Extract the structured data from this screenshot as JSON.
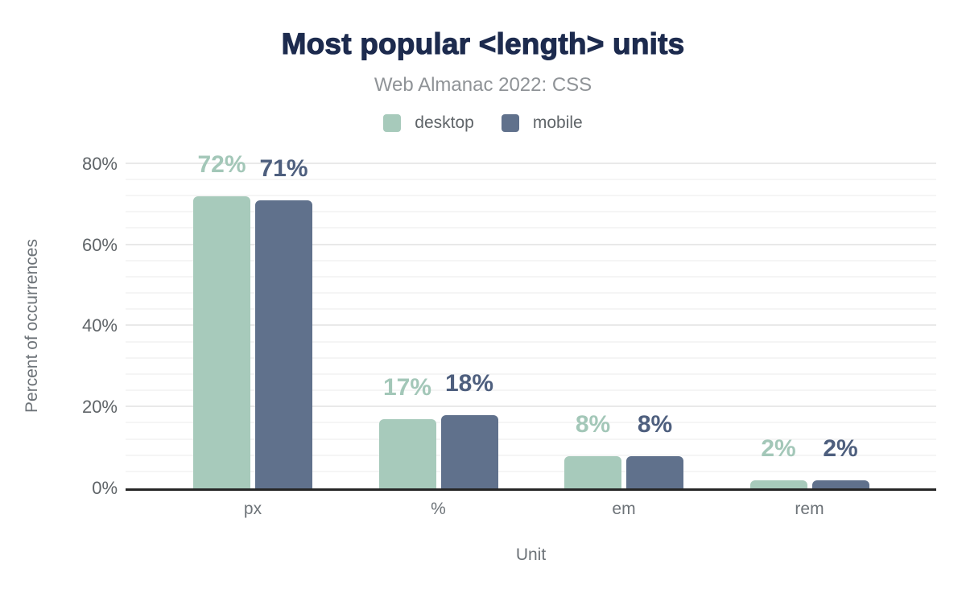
{
  "header": {
    "title": "Most popular <length> units",
    "subtitle": "Web Almanac 2022: CSS"
  },
  "chart_data": {
    "type": "bar",
    "title": "Most popular <length> units",
    "subtitle": "Web Almanac 2022: CSS",
    "categories": [
      "px",
      "%",
      "em",
      "rem"
    ],
    "series": [
      {
        "name": "desktop",
        "color": "#a7cabb",
        "label_color": "#a3c7b8",
        "values": [
          72,
          17,
          8,
          2
        ]
      },
      {
        "name": "mobile",
        "color": "#60718c",
        "label_color": "#4e5f7e",
        "values": [
          71,
          18,
          8,
          2
        ]
      }
    ],
    "value_labels": {
      "desktop": [
        "72%",
        "17%",
        "8%",
        "2%"
      ],
      "mobile": [
        "71%",
        "18%",
        "8%",
        "2%"
      ]
    },
    "xlabel": "Unit",
    "ylabel": "Percent of occurrences",
    "ylim": [
      0,
      80
    ],
    "yticks": [
      0,
      20,
      40,
      60,
      80
    ],
    "ytick_labels": [
      "0%",
      "20%",
      "40%",
      "60%",
      "80%"
    ],
    "grid": "horizontal major every 20%, minor every 4%",
    "legend_position": "top"
  },
  "style": {
    "title_color": "#1d2b4e",
    "subtitle_color": "#8f9397",
    "axis_text_color": "#5f6468",
    "axis_line_color": "#262626",
    "grid_major_color": "#e9e9e9",
    "grid_minor_color": "#f5f5f5",
    "background": "#ffffff"
  }
}
